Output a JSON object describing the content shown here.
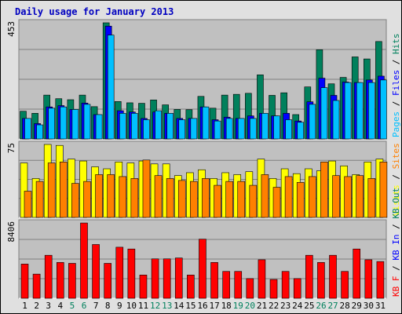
{
  "title": "Daily usage for January 2013",
  "colors": {
    "hits": "#00805c",
    "files": "#0000ff",
    "pages": "#00c0ff",
    "visits": "#ffff00",
    "sites": "#ff8000",
    "kb_f": "#ff0000",
    "kb_in": "#0000ff",
    "kb_out": "#00805c",
    "plot_bg": "#c0c0c0",
    "weekend_day": "#00805c",
    "weekday": "#000000"
  },
  "chart_data": {
    "type": "bar",
    "days": [
      "1",
      "2",
      "3",
      "4",
      "5",
      "6",
      "7",
      "8",
      "9",
      "10",
      "11",
      "12",
      "13",
      "14",
      "15",
      "16",
      "17",
      "18",
      "19",
      "20",
      "21",
      "22",
      "23",
      "24",
      "25",
      "26",
      "27",
      "28",
      "29",
      "30",
      "31"
    ],
    "weekend_days": [
      "5",
      "6",
      "12",
      "13",
      "19",
      "20",
      "26",
      "27"
    ],
    "panels": [
      {
        "name": "hits_files_pages",
        "ymax_label": "453",
        "ymax": 453,
        "legend": [
          "Pages",
          "/",
          "Files",
          "/",
          "Hits"
        ],
        "series": [
          {
            "name": "Hits",
            "values": [
              108,
              100,
              171,
              157,
              153,
              171,
              126,
              453,
              146,
              141,
              139,
              152,
              133,
              115,
              114,
              166,
              120,
              171,
              174,
              178,
              250,
              170,
              180,
              95,
              203,
              348,
              215,
              240,
              320,
              312,
              380
            ]
          },
          {
            "name": "Files",
            "values": [
              80,
              60,
              125,
              130,
              115,
              140,
              95,
              440,
              110,
              105,
              80,
              105,
              100,
              80,
              80,
              125,
              75,
              85,
              80,
              90,
              100,
              90,
              100,
              70,
              145,
              237,
              170,
              222,
              220,
              230,
              245
            ]
          },
          {
            "name": "Pages",
            "values": [
              80,
              55,
              120,
              125,
              115,
              135,
              95,
              405,
              100,
              100,
              75,
              110,
              100,
              75,
              80,
              125,
              70,
              80,
              80,
              80,
              100,
              90,
              75,
              65,
              135,
              200,
              150,
              220,
              220,
              220,
              230
            ]
          }
        ]
      },
      {
        "name": "visits_sites",
        "ymax_label": "75",
        "ymax": 75,
        "legend": [
          "Visits",
          "/",
          "Sites"
        ],
        "series": [
          {
            "name": "Visits",
            "values": [
              56,
              40,
              75,
              74,
              60,
              58,
              52,
              50,
              57,
              56,
              58,
              55,
              55,
              43,
              46,
              49,
              40,
              46,
              44,
              47,
              60,
              40,
              50,
              45,
              50,
              48,
              58,
              53,
              44,
              57,
              60
            ]
          },
          {
            "name": "Sites",
            "values": [
              27,
              37,
              56,
              57,
              35,
              37,
              44,
              44,
              42,
              40,
              59,
              43,
              40,
              38,
              37,
              40,
              33,
              37,
              37,
              33,
              44,
              31,
              42,
              36,
              42,
              57,
              43,
              42,
              43,
              40,
              57
            ]
          }
        ]
      },
      {
        "name": "kb",
        "ymax_label": "8406",
        "ymax": 8406,
        "legend": [
          "KB F",
          "/",
          "KB In",
          "/",
          "KB Out"
        ],
        "series": [
          {
            "name": "KB F",
            "values": [
              3820,
              2700,
              4800,
              4000,
              3900,
              8400,
              6000,
              3900,
              5700,
              5500,
              2600,
              4400,
              4400,
              4500,
              2600,
              6600,
              4000,
              3000,
              3000,
              2200,
              4300,
              2100,
              3000,
              2200,
              4800,
              4000,
              4800,
              3000,
              5500,
              4300,
              4100
            ]
          }
        ]
      }
    ]
  }
}
